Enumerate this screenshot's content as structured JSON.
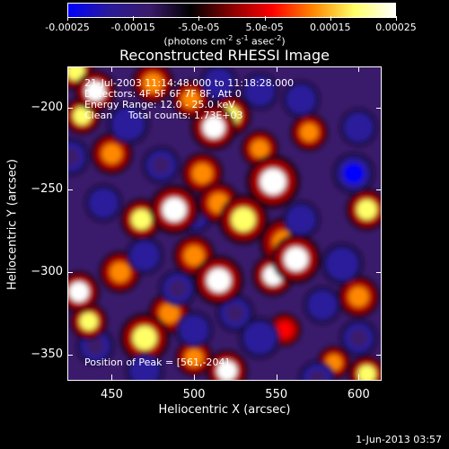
{
  "colorbar": {
    "ticks": [
      "-0.00025",
      "-0.00015",
      "-5.0e-05",
      "5.0e-05",
      "0.00015",
      "0.00025"
    ],
    "units_pre": "(photons cm",
    "units_sup1": "-2",
    "units_mid1": " s",
    "units_sup2": "-1",
    "units_mid2": " asec",
    "units_sup3": "-2",
    "units_post": ")",
    "colors": [
      "#0000ff",
      "#2a1a9a",
      "#3a1a6a",
      "#000000",
      "#8a0000",
      "#ff0000",
      "#ff8800",
      "#ffff66",
      "#ffffff"
    ]
  },
  "annotation": {
    "line1": "21-Jul-2003 11:14:48.000 to 11:18:28.000",
    "line2": "Detectors: 4F 5F 6F 7F 8F, Att 0",
    "line3": "Energy Range: 12.0 - 25.0 keV",
    "line4": "Clean     Total counts: 1.73E+03",
    "peak": "Position of Peak = [561,-204]"
  },
  "footer": {
    "date": "1-Jun-2013 03:57"
  },
  "chart_data": {
    "type": "heatmap",
    "title": "Reconstructed RHESSI Image",
    "xlabel": "Heliocentric X (arcsec)",
    "ylabel": "Heliocentric Y (arcsec)",
    "xlim": [
      423,
      614
    ],
    "ylim": [
      -366,
      -175
    ],
    "xticks": [
      450,
      500,
      550,
      600
    ],
    "yticks": [
      -200,
      -250,
      -300,
      -350
    ],
    "colorbar_range": [
      -0.00025,
      0.00025
    ],
    "blobs": [
      {
        "x": 468,
        "y": -268,
        "w": 10,
        "value": 0.00018
      },
      {
        "x": 488,
        "y": -262,
        "w": 12,
        "value": 0.00024
      },
      {
        "x": 505,
        "y": -240,
        "w": 10,
        "value": 0.00014
      },
      {
        "x": 512,
        "y": -212,
        "w": 11,
        "value": 0.00022
      },
      {
        "x": 522,
        "y": -205,
        "w": 10,
        "value": 0.00018
      },
      {
        "x": 515,
        "y": -258,
        "w": 10,
        "value": 0.00015
      },
      {
        "x": 530,
        "y": -268,
        "w": 12,
        "value": 0.00018
      },
      {
        "x": 548,
        "y": -245,
        "w": 13,
        "value": 0.00024
      },
      {
        "x": 555,
        "y": -282,
        "w": 12,
        "value": 0.00015
      },
      {
        "x": 562,
        "y": -292,
        "w": 12,
        "value": 0.00024
      },
      {
        "x": 548,
        "y": -302,
        "w": 10,
        "value": 0.00022
      },
      {
        "x": 515,
        "y": -305,
        "w": 12,
        "value": 0.00025
      },
      {
        "x": 500,
        "y": -290,
        "w": 10,
        "value": 0.00015
      },
      {
        "x": 455,
        "y": -300,
        "w": 10,
        "value": 0.00014
      },
      {
        "x": 430,
        "y": -312,
        "w": 10,
        "value": 0.00022
      },
      {
        "x": 436,
        "y": -330,
        "w": 9,
        "value": 0.0002
      },
      {
        "x": 470,
        "y": -340,
        "w": 12,
        "value": 0.00018
      },
      {
        "x": 485,
        "y": -325,
        "w": 10,
        "value": 0.00012
      },
      {
        "x": 520,
        "y": -360,
        "w": 10,
        "value": 0.00022
      },
      {
        "x": 500,
        "y": -352,
        "w": 9,
        "value": 0.00014
      },
      {
        "x": 450,
        "y": -228,
        "w": 10,
        "value": 0.00014
      },
      {
        "x": 440,
        "y": -190,
        "w": 10,
        "value": 0.00022
      },
      {
        "x": 432,
        "y": -205,
        "w": 9,
        "value": 0.00018
      },
      {
        "x": 475,
        "y": -185,
        "w": 10,
        "value": 0.00014
      },
      {
        "x": 498,
        "y": -195,
        "w": 9,
        "value": 0.00013
      },
      {
        "x": 570,
        "y": -215,
        "w": 9,
        "value": 0.00015
      },
      {
        "x": 605,
        "y": -262,
        "w": 10,
        "value": 0.00018
      },
      {
        "x": 600,
        "y": -315,
        "w": 10,
        "value": 0.00013
      },
      {
        "x": 605,
        "y": -362,
        "w": 9,
        "value": 0.00018
      },
      {
        "x": 585,
        "y": -355,
        "w": 8,
        "value": 0.00013
      },
      {
        "x": 555,
        "y": -335,
        "w": 8,
        "value": 9e-05
      },
      {
        "x": 540,
        "y": -225,
        "w": 9,
        "value": 0.0001
      },
      {
        "x": 428,
        "y": -178,
        "w": 9,
        "value": 0.00018
      },
      {
        "x": 460,
        "y": -210,
        "w": 10,
        "value": -0.0002
      },
      {
        "x": 500,
        "y": -265,
        "w": 9,
        "value": -0.00014
      },
      {
        "x": 597,
        "y": -240,
        "w": 10,
        "value": -0.00025
      },
      {
        "x": 600,
        "y": -212,
        "w": 9,
        "value": -0.0002
      },
      {
        "x": 565,
        "y": -195,
        "w": 9,
        "value": -0.00018
      },
      {
        "x": 540,
        "y": -190,
        "w": 9,
        "value": -0.00016
      },
      {
        "x": 565,
        "y": -268,
        "w": 9,
        "value": -0.00016
      },
      {
        "x": 590,
        "y": -295,
        "w": 10,
        "value": -0.0002
      },
      {
        "x": 578,
        "y": -320,
        "w": 9,
        "value": -0.00018
      },
      {
        "x": 540,
        "y": -340,
        "w": 10,
        "value": -0.0002
      },
      {
        "x": 490,
        "y": -310,
        "w": 9,
        "value": -0.00015
      },
      {
        "x": 470,
        "y": -290,
        "w": 9,
        "value": -0.00018
      },
      {
        "x": 445,
        "y": -258,
        "w": 9,
        "value": -0.00016
      },
      {
        "x": 440,
        "y": -345,
        "w": 9,
        "value": -0.00014
      },
      {
        "x": 470,
        "y": -360,
        "w": 9,
        "value": -0.0002
      },
      {
        "x": 500,
        "y": -335,
        "w": 9,
        "value": -0.00016
      },
      {
        "x": 525,
        "y": -325,
        "w": 9,
        "value": -0.00014
      },
      {
        "x": 515,
        "y": -185,
        "w": 9,
        "value": -0.00016
      },
      {
        "x": 480,
        "y": -235,
        "w": 9,
        "value": -0.00014
      },
      {
        "x": 575,
        "y": -365,
        "w": 9,
        "value": -0.00015
      },
      {
        "x": 425,
        "y": -230,
        "w": 9,
        "value": -0.00014
      },
      {
        "x": 600,
        "y": -340,
        "w": 9,
        "value": -0.00014
      }
    ]
  }
}
